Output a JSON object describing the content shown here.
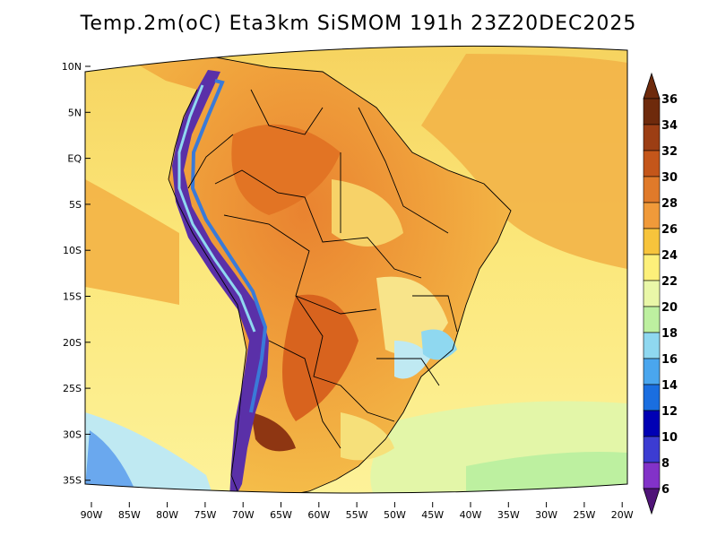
{
  "title": "Temp.2m(oC) Eta3km SiSMOM 191h 23Z20DEC2025",
  "map": {
    "lat_ticks": [
      "10N",
      "5N",
      "EQ",
      "5S",
      "10S",
      "15S",
      "20S",
      "25S",
      "30S",
      "35S"
    ],
    "lon_ticks": [
      "90W",
      "85W",
      "80W",
      "75W",
      "70W",
      "65W",
      "60W",
      "55W",
      "50W",
      "45W",
      "40W",
      "35W",
      "30W",
      "25W",
      "20W"
    ]
  },
  "colorbar": {
    "labels": [
      "36",
      "34",
      "32",
      "30",
      "28",
      "26",
      "24",
      "22",
      "20",
      "18",
      "16",
      "14",
      "12",
      "10",
      "8",
      "6"
    ],
    "colors": [
      "#6e2a0c",
      "#9c3e14",
      "#c4561a",
      "#e07a2a",
      "#f09a3a",
      "#f7c43c",
      "#fdf07a",
      "#e9f7a8",
      "#bdf0a0",
      "#8fd8f0",
      "#4aa6ee",
      "#1a6ee0",
      "#0000b4",
      "#3c3cd2",
      "#8232c8",
      "#501478"
    ]
  },
  "colors": {
    "ocean_north": "#f6df6a",
    "ocean_south": "#fdf28a",
    "land_hot": "#ed8a30",
    "land_warm": "#f4b446",
    "andes": "#5a30a8",
    "border": "#000000"
  }
}
